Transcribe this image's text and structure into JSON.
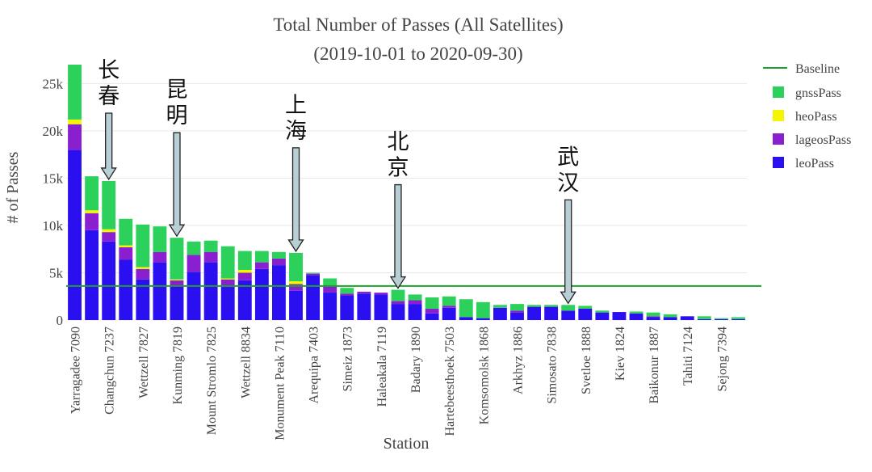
{
  "chart_data": {
    "type": "bar",
    "stacked": true,
    "title": "Total Number of Passes (All Satellites)",
    "subtitle": "(2019-10-01 to 2020-09-30)",
    "xlabel": "Station",
    "ylabel": "# of Passes",
    "ylim": [
      0,
      27000
    ],
    "yticks": [
      0,
      5000,
      10000,
      15000,
      20000,
      25000
    ],
    "ytick_labels": [
      "0",
      "5k",
      "10k",
      "15k",
      "20k",
      "25k"
    ],
    "grid": true,
    "legend_position": "top-right",
    "categories": [
      "Yarragadee 7090",
      "",
      "Changchun 7237",
      "",
      "Wettzell 7827",
      "",
      "Kunming 7819",
      "",
      "Mount Stromlo 7825",
      "",
      "Wettzell 8834",
      "",
      "Monument Peak 7110",
      "",
      "Arequipa 7403",
      "",
      "Simeiz 1873",
      "",
      "Haleakala 7119",
      "",
      "Badary 1890",
      "",
      "Hartebeesthoek 7503",
      "",
      "Komsomolsk 1868",
      "",
      "Arkhyz 1886",
      "",
      "Simosato 7838",
      "",
      "Svetloe 1888",
      "",
      "Kiev 1824",
      "",
      "Baikonur 1887",
      "",
      "Tahiti 7124",
      "",
      "Sejong 7394",
      ""
    ],
    "series": [
      {
        "name": "leoPass",
        "color": "#2a0ff0",
        "values": [
          18000,
          9500,
          8300,
          6400,
          4300,
          6100,
          3600,
          5100,
          6100,
          3500,
          4200,
          5400,
          5800,
          3100,
          4700,
          2900,
          2600,
          2800,
          2700,
          1700,
          1700,
          700,
          1300,
          300,
          200,
          1300,
          800,
          1400,
          1400,
          1000,
          1200,
          800,
          850,
          700,
          300,
          300,
          400,
          100,
          100,
          100
        ]
      },
      {
        "name": "lageosPass",
        "color": "#8a1fd0",
        "values": [
          2700,
          1800,
          1000,
          1300,
          1100,
          1100,
          600,
          1800,
          1100,
          800,
          800,
          700,
          700,
          700,
          200,
          700,
          200,
          200,
          200,
          300,
          400,
          500,
          200,
          0,
          0,
          0,
          200,
          0,
          0,
          0,
          0,
          0,
          0,
          0,
          100,
          0,
          0,
          0,
          0,
          0
        ]
      },
      {
        "name": "heoPass",
        "color": "#f5f500",
        "values": [
          500,
          300,
          300,
          200,
          200,
          0,
          100,
          0,
          0,
          100,
          300,
          0,
          0,
          300,
          0,
          0,
          0,
          0,
          0,
          0,
          0,
          0,
          0,
          0,
          0,
          0,
          0,
          0,
          0,
          0,
          0,
          0,
          0,
          0,
          0,
          0,
          0,
          0,
          0,
          0
        ]
      },
      {
        "name": "gnssPass",
        "color": "#2bd15a",
        "values": [
          5800,
          3600,
          5100,
          2800,
          4500,
          2700,
          4400,
          1400,
          1200,
          3400,
          2000,
          1200,
          700,
          3000,
          100,
          800,
          600,
          0,
          0,
          1200,
          600,
          1200,
          1000,
          1900,
          1700,
          300,
          700,
          200,
          200,
          600,
          300,
          200,
          0,
          200,
          400,
          300,
          0,
          300,
          100,
          200
        ]
      }
    ],
    "baseline": {
      "name": "Baseline",
      "value": 3600,
      "color": "#1f9e2e"
    },
    "annotations": [
      {
        "text": "长春",
        "category_index": 2
      },
      {
        "text": "昆明",
        "category_index": 6
      },
      {
        "text": "上海",
        "category_index": 13
      },
      {
        "text": "北京",
        "category_index": 19
      },
      {
        "text": "武汉",
        "category_index": 29
      }
    ]
  }
}
